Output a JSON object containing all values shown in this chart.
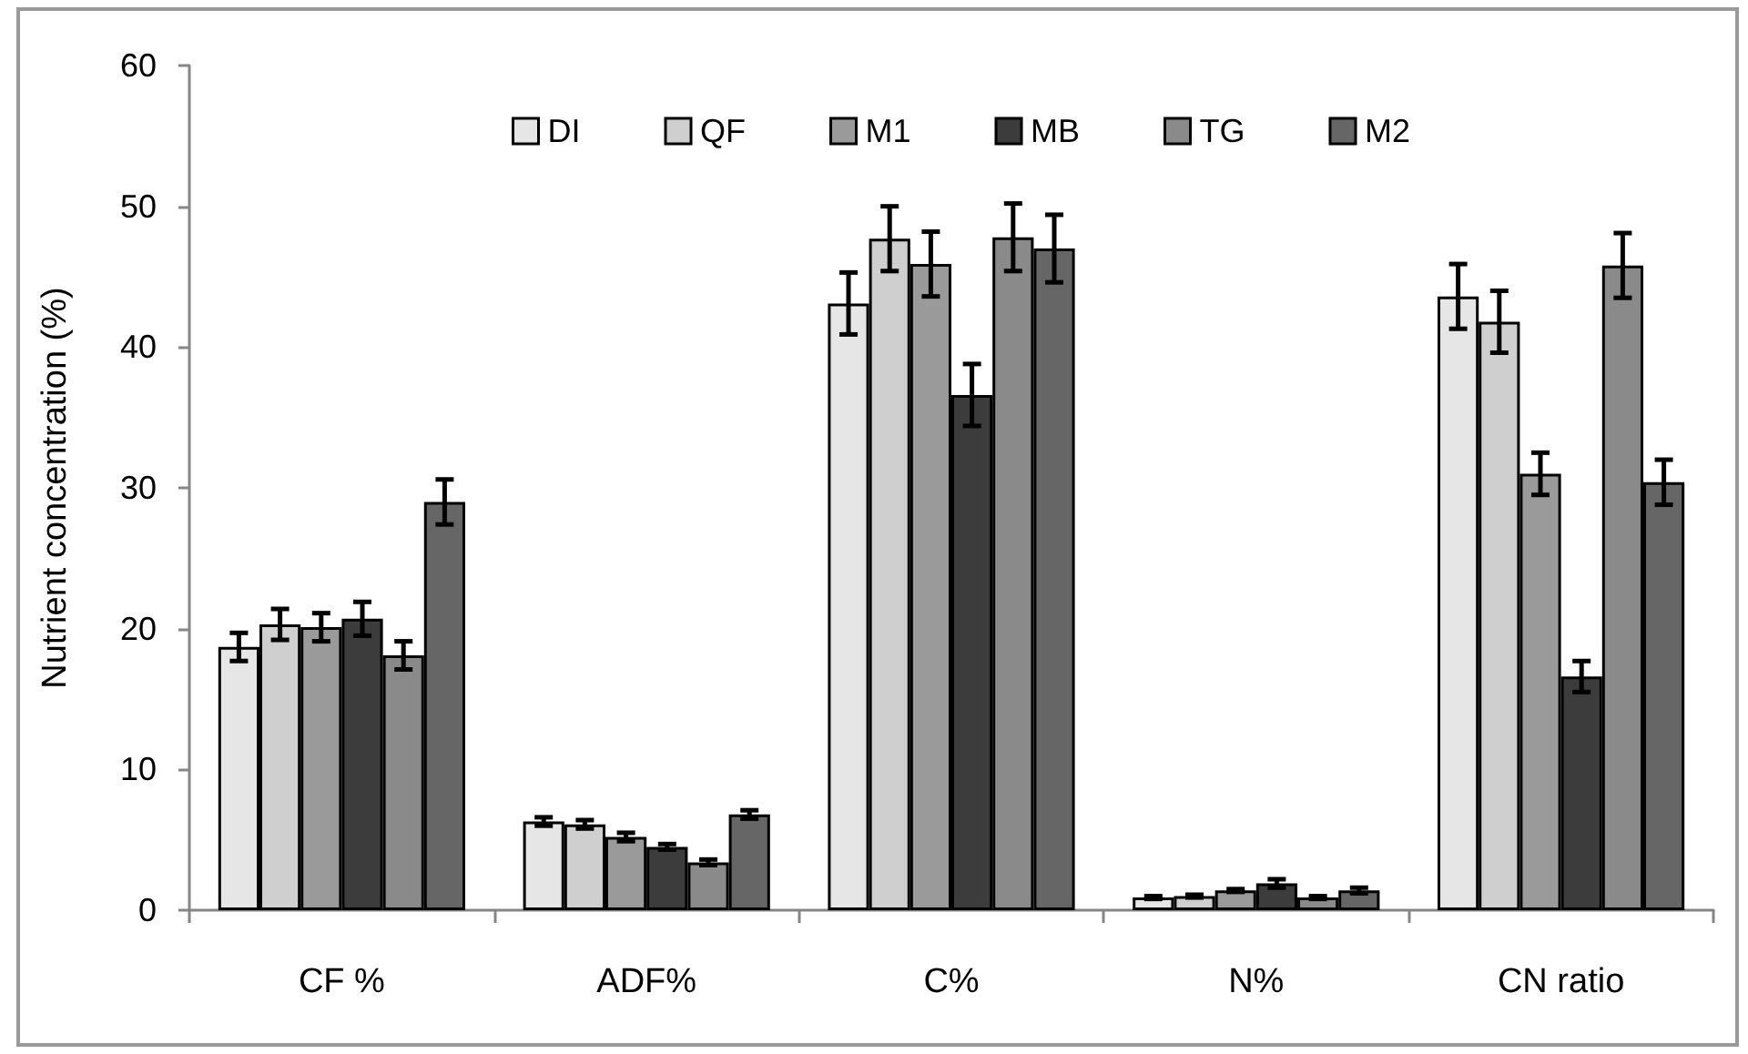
{
  "chart_data": {
    "type": "bar",
    "categories": [
      "CF %",
      "ADF%",
      "C%",
      "N%",
      "CN ratio"
    ],
    "ylabel": "Nutrient concentration (%)",
    "ylim": [
      0,
      60
    ],
    "yticks": [
      0,
      10,
      20,
      30,
      40,
      50,
      60
    ],
    "grid": false,
    "legend": "top",
    "series": [
      {
        "name": "DI",
        "color": "#e6e6e6",
        "values": [
          18.7,
          6.3,
          43.1,
          0.9,
          43.6
        ],
        "errors": [
          1.0,
          0.3,
          2.2,
          0.1,
          2.3
        ]
      },
      {
        "name": "QF",
        "color": "#cfcfcf",
        "values": [
          20.3,
          6.1,
          47.7,
          1.0,
          41.8
        ],
        "errors": [
          1.1,
          0.3,
          2.3,
          0.1,
          2.2
        ]
      },
      {
        "name": "M1",
        "color": "#9a9a9a",
        "values": [
          20.1,
          5.2,
          45.9,
          1.4,
          31.0
        ],
        "errors": [
          1.0,
          0.3,
          2.3,
          0.1,
          1.5
        ]
      },
      {
        "name": "MB",
        "color": "#3c3c3c",
        "values": [
          20.7,
          4.5,
          36.6,
          1.9,
          16.6
        ],
        "errors": [
          1.2,
          0.2,
          2.2,
          0.3,
          1.1
        ]
      },
      {
        "name": "TG",
        "color": "#8a8a8a",
        "values": [
          18.1,
          3.4,
          47.8,
          0.9,
          45.8
        ],
        "errors": [
          1.0,
          0.2,
          2.4,
          0.1,
          2.3
        ]
      },
      {
        "name": "M2",
        "color": "#666666",
        "values": [
          29.0,
          6.8,
          47.0,
          1.4,
          30.4
        ],
        "errors": [
          1.6,
          0.3,
          2.4,
          0.2,
          1.6
        ]
      }
    ]
  }
}
